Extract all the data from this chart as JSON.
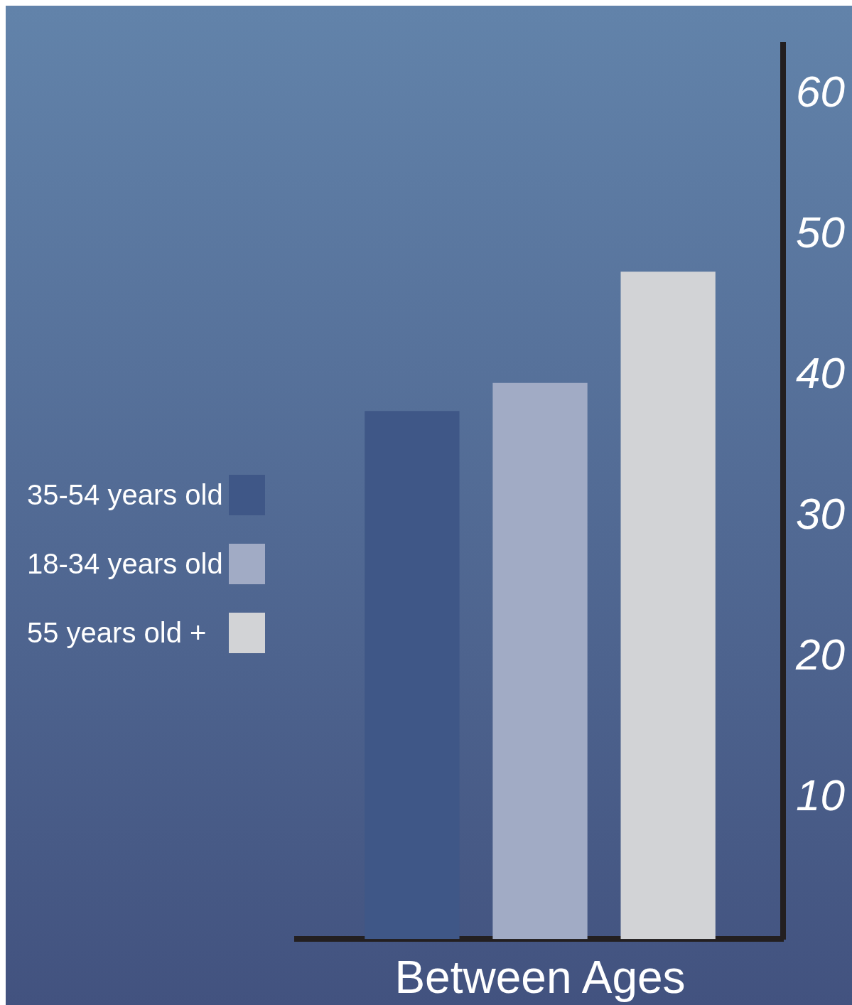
{
  "chart_data": {
    "type": "bar",
    "categories": [
      null
    ],
    "xlabel": "Between Ages",
    "series": [
      {
        "name": "35-54 years old",
        "color": "#3f5787",
        "values": [
          37.5
        ]
      },
      {
        "name": "18-34 years old",
        "color": "#a1abc5",
        "values": [
          39.5
        ]
      },
      {
        "name": "55 years old +",
        "color": "#d2d3d6",
        "values": [
          47.4
        ]
      }
    ],
    "ylim": [
      0,
      63.5
    ],
    "yticks": [
      10,
      20,
      30,
      40,
      50,
      60
    ],
    "grid": false,
    "legend": "left"
  }
}
